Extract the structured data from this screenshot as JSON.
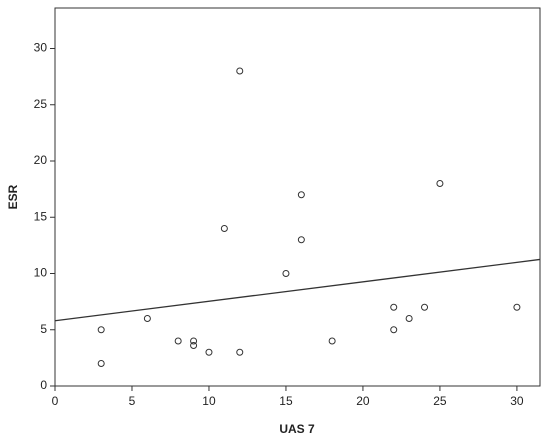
{
  "chart_data": {
    "type": "scatter",
    "x_label": "UAS 7",
    "y_label": "ESR",
    "x": [
      3,
      3,
      6,
      8,
      9,
      9,
      10,
      12,
      12,
      11,
      15,
      16,
      16,
      18,
      22,
      22,
      23,
      24,
      25,
      30
    ],
    "values": [
      5,
      2,
      6,
      4,
      4,
      3.6,
      3,
      28,
      3,
      14,
      10,
      17,
      13,
      4,
      7,
      5,
      6,
      7,
      18,
      7
    ],
    "color": "#333333",
    "trend_line": {
      "x": [
        0,
        31.5
      ],
      "y": [
        5.8,
        11.25
      ],
      "color": "#333333"
    },
    "xlim": [
      0,
      31.5
    ],
    "ylim": [
      0,
      33.6
    ],
    "xticks": [
      0,
      5,
      10,
      15,
      20,
      25,
      30
    ],
    "yticks": [
      0,
      5,
      10,
      15,
      20,
      25,
      30
    ],
    "grid": false
  }
}
